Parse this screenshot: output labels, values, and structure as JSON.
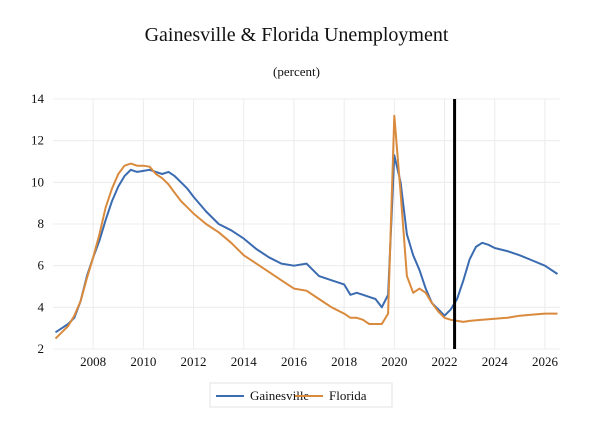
{
  "chart_data": {
    "type": "line",
    "title": "Gainesville & Florida Unemployment",
    "subtitle": "(percent)",
    "xlabel": "",
    "ylabel": "",
    "xlim": [
      2006.4,
      2026.6
    ],
    "ylim": [
      2,
      14
    ],
    "x_ticks": [
      2008,
      2010,
      2012,
      2014,
      2016,
      2018,
      2020,
      2022,
      2024,
      2026
    ],
    "y_ticks": [
      2,
      4,
      6,
      8,
      10,
      12,
      14
    ],
    "grid": true,
    "legend_position": "bottom",
    "reference_line_x": 2022.4,
    "series": [
      {
        "name": "Gainesville",
        "color": "#3b6bb0",
        "points": [
          [
            2006.5,
            2.8
          ],
          [
            2006.75,
            3.0
          ],
          [
            2007.0,
            3.2
          ],
          [
            2007.25,
            3.5
          ],
          [
            2007.5,
            4.3
          ],
          [
            2007.75,
            5.5
          ],
          [
            2008.0,
            6.4
          ],
          [
            2008.25,
            7.2
          ],
          [
            2008.5,
            8.2
          ],
          [
            2008.75,
            9.1
          ],
          [
            2009.0,
            9.8
          ],
          [
            2009.25,
            10.3
          ],
          [
            2009.5,
            10.6
          ],
          [
            2009.75,
            10.5
          ],
          [
            2010.0,
            10.55
          ],
          [
            2010.25,
            10.6
          ],
          [
            2010.5,
            10.5
          ],
          [
            2010.75,
            10.4
          ],
          [
            2011.0,
            10.5
          ],
          [
            2011.25,
            10.3
          ],
          [
            2011.5,
            10.0
          ],
          [
            2011.75,
            9.7
          ],
          [
            2012.0,
            9.3
          ],
          [
            2012.5,
            8.6
          ],
          [
            2013.0,
            8.0
          ],
          [
            2013.5,
            7.7
          ],
          [
            2014.0,
            7.3
          ],
          [
            2014.5,
            6.8
          ],
          [
            2015.0,
            6.4
          ],
          [
            2015.5,
            6.1
          ],
          [
            2016.0,
            6.0
          ],
          [
            2016.5,
            6.1
          ],
          [
            2017.0,
            5.5
          ],
          [
            2017.5,
            5.3
          ],
          [
            2018.0,
            5.1
          ],
          [
            2018.25,
            4.6
          ],
          [
            2018.5,
            4.7
          ],
          [
            2018.75,
            4.6
          ],
          [
            2019.0,
            4.5
          ],
          [
            2019.25,
            4.4
          ],
          [
            2019.5,
            4.0
          ],
          [
            2019.75,
            4.6
          ],
          [
            2020.0,
            11.3
          ],
          [
            2020.25,
            10.0
          ],
          [
            2020.5,
            7.5
          ],
          [
            2020.75,
            6.5
          ],
          [
            2021.0,
            5.8
          ],
          [
            2021.25,
            4.9
          ],
          [
            2021.5,
            4.2
          ],
          [
            2021.75,
            3.9
          ],
          [
            2022.0,
            3.6
          ],
          [
            2022.25,
            3.9
          ],
          [
            2022.5,
            4.4
          ],
          [
            2022.75,
            5.3
          ],
          [
            2023.0,
            6.3
          ],
          [
            2023.25,
            6.9
          ],
          [
            2023.5,
            7.1
          ],
          [
            2023.75,
            7.0
          ],
          [
            2024.0,
            6.85
          ],
          [
            2024.5,
            6.7
          ],
          [
            2025.0,
            6.5
          ],
          [
            2025.5,
            6.25
          ],
          [
            2026.0,
            6.0
          ],
          [
            2026.5,
            5.6
          ]
        ]
      },
      {
        "name": "Florida",
        "color": "#d98a3c",
        "points": [
          [
            2006.5,
            2.5
          ],
          [
            2006.75,
            2.8
          ],
          [
            2007.0,
            3.1
          ],
          [
            2007.25,
            3.6
          ],
          [
            2007.5,
            4.3
          ],
          [
            2007.75,
            5.4
          ],
          [
            2008.0,
            6.4
          ],
          [
            2008.25,
            7.5
          ],
          [
            2008.5,
            8.8
          ],
          [
            2008.75,
            9.7
          ],
          [
            2009.0,
            10.4
          ],
          [
            2009.25,
            10.8
          ],
          [
            2009.5,
            10.9
          ],
          [
            2009.75,
            10.8
          ],
          [
            2010.0,
            10.8
          ],
          [
            2010.25,
            10.75
          ],
          [
            2010.5,
            10.4
          ],
          [
            2010.75,
            10.2
          ],
          [
            2011.0,
            9.9
          ],
          [
            2011.25,
            9.5
          ],
          [
            2011.5,
            9.1
          ],
          [
            2011.75,
            8.8
          ],
          [
            2012.0,
            8.5
          ],
          [
            2012.5,
            8.0
          ],
          [
            2013.0,
            7.6
          ],
          [
            2013.5,
            7.1
          ],
          [
            2014.0,
            6.5
          ],
          [
            2014.5,
            6.1
          ],
          [
            2015.0,
            5.7
          ],
          [
            2015.5,
            5.3
          ],
          [
            2016.0,
            4.9
          ],
          [
            2016.5,
            4.8
          ],
          [
            2017.0,
            4.4
          ],
          [
            2017.5,
            4.0
          ],
          [
            2018.0,
            3.7
          ],
          [
            2018.25,
            3.5
          ],
          [
            2018.5,
            3.5
          ],
          [
            2018.75,
            3.4
          ],
          [
            2019.0,
            3.2
          ],
          [
            2019.25,
            3.2
          ],
          [
            2019.5,
            3.2
          ],
          [
            2019.75,
            3.7
          ],
          [
            2020.0,
            13.2
          ],
          [
            2020.25,
            9.5
          ],
          [
            2020.5,
            5.5
          ],
          [
            2020.75,
            4.7
          ],
          [
            2021.0,
            4.9
          ],
          [
            2021.25,
            4.7
          ],
          [
            2021.5,
            4.2
          ],
          [
            2021.75,
            3.8
          ],
          [
            2022.0,
            3.5
          ],
          [
            2022.25,
            3.4
          ],
          [
            2022.5,
            3.35
          ],
          [
            2022.75,
            3.3
          ],
          [
            2023.0,
            3.35
          ],
          [
            2023.5,
            3.4
          ],
          [
            2024.0,
            3.45
          ],
          [
            2024.5,
            3.5
          ],
          [
            2025.0,
            3.6
          ],
          [
            2025.5,
            3.65
          ],
          [
            2026.0,
            3.7
          ],
          [
            2026.5,
            3.7
          ]
        ]
      }
    ]
  }
}
